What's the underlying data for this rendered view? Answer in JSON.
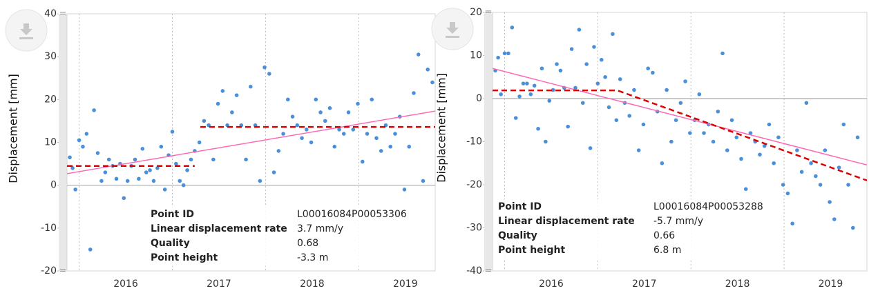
{
  "chart_data": [
    {
      "type": "scatter",
      "y_label": "Displacement [mm]",
      "color": "#4a90d9",
      "x": [
        2015.9,
        2015.93,
        2015.96,
        2016.0,
        2016.04,
        2016.08,
        2016.12,
        2016.16,
        2016.2,
        2016.24,
        2016.28,
        2016.32,
        2016.36,
        2016.4,
        2016.44,
        2016.48,
        2016.52,
        2016.56,
        2016.6,
        2016.64,
        2016.68,
        2016.72,
        2016.76,
        2016.8,
        2016.84,
        2016.88,
        2016.92,
        2016.96,
        2017.0,
        2017.04,
        2017.08,
        2017.12,
        2017.16,
        2017.2,
        2017.24,
        2017.29,
        2017.34,
        2017.39,
        2017.44,
        2017.49,
        2017.54,
        2017.59,
        2017.64,
        2017.69,
        2017.74,
        2017.79,
        2017.84,
        2017.89,
        2017.94,
        2017.99,
        2018.04,
        2018.09,
        2018.14,
        2018.19,
        2018.24,
        2018.29,
        2018.34,
        2018.39,
        2018.44,
        2018.49,
        2018.54,
        2018.59,
        2018.64,
        2018.69,
        2018.74,
        2018.79,
        2018.84,
        2018.89,
        2018.94,
        2018.99,
        2019.04,
        2019.09,
        2019.14,
        2019.19,
        2019.24,
        2019.29,
        2019.34,
        2019.39,
        2019.44,
        2019.49,
        2019.54,
        2019.59,
        2019.64,
        2019.69,
        2019.74,
        2019.79
      ],
      "values": [
        6.5,
        4,
        -1,
        10.5,
        9,
        12,
        -15,
        17.5,
        7.5,
        1,
        3,
        6,
        4.5,
        1.5,
        5,
        -3,
        1,
        4.5,
        6,
        1.5,
        8.5,
        3,
        3.5,
        1,
        4,
        9,
        -1,
        7,
        12.5,
        5,
        1,
        0,
        3.5,
        6,
        8,
        10,
        15,
        14,
        6,
        19,
        22,
        14,
        17,
        21,
        14,
        6,
        23,
        14,
        1,
        27.5,
        26,
        3,
        8,
        12,
        20,
        16,
        14,
        11,
        13,
        10,
        20,
        17,
        15,
        18,
        9,
        13,
        12,
        17,
        13,
        19,
        5.5,
        12,
        20,
        11,
        8,
        14,
        9,
        12,
        16,
        -1,
        9,
        21.5,
        30.5,
        1,
        27,
        24
      ],
      "trend": {
        "color": "#ff69b4",
        "x": [
          2015.87,
          2019.82
        ],
        "y": [
          2.7,
          17.3
        ]
      },
      "step": {
        "color": "#dd0000",
        "x": [
          2015.87,
          2017.24,
          2017.27,
          2017.3,
          2019.82
        ],
        "y": [
          4.5,
          4.5,
          null,
          13.6,
          13.6
        ]
      },
      "ylim": [
        -20,
        40
      ],
      "yticks": [
        -20,
        -10,
        0,
        10,
        20,
        30,
        40
      ],
      "xlim": [
        2015.87,
        2019.82
      ],
      "xticks": [
        {
          "value": 2016.5,
          "label": "2016"
        },
        {
          "value": 2017.5,
          "label": "2017"
        },
        {
          "value": 2018.5,
          "label": "2018"
        },
        {
          "value": 2019.5,
          "label": "2019"
        }
      ],
      "xgrid": [
        2016,
        2017,
        2018,
        2019
      ],
      "zero_line": true,
      "info": [
        {
          "label": "Point ID",
          "value": "L00016084P00053306"
        },
        {
          "label": "Linear displacement rate",
          "value": "3.7 mm/y"
        },
        {
          "label": "Quality",
          "value": "0.68"
        },
        {
          "label": "Point height",
          "value": "-3.3 m"
        }
      ]
    },
    {
      "type": "scatter",
      "y_label": "Displacement [mm]",
      "color": "#4a90d9",
      "x": [
        2015.9,
        2015.93,
        2015.96,
        2016.0,
        2016.04,
        2016.08,
        2016.12,
        2016.16,
        2016.2,
        2016.24,
        2016.28,
        2016.32,
        2016.36,
        2016.4,
        2016.44,
        2016.48,
        2016.52,
        2016.56,
        2016.6,
        2016.64,
        2016.68,
        2016.72,
        2016.76,
        2016.8,
        2016.84,
        2016.88,
        2016.92,
        2016.96,
        2017.0,
        2017.04,
        2017.08,
        2017.12,
        2017.16,
        2017.2,
        2017.24,
        2017.29,
        2017.34,
        2017.39,
        2017.44,
        2017.49,
        2017.54,
        2017.59,
        2017.64,
        2017.69,
        2017.74,
        2017.79,
        2017.84,
        2017.89,
        2017.94,
        2017.99,
        2018.04,
        2018.09,
        2018.14,
        2018.19,
        2018.24,
        2018.29,
        2018.34,
        2018.39,
        2018.44,
        2018.49,
        2018.54,
        2018.59,
        2018.64,
        2018.69,
        2018.74,
        2018.79,
        2018.84,
        2018.89,
        2018.94,
        2018.99,
        2019.04,
        2019.09,
        2019.14,
        2019.19,
        2019.24,
        2019.29,
        2019.34,
        2019.39,
        2019.44,
        2019.49,
        2019.54,
        2019.59,
        2019.64,
        2019.69,
        2019.74,
        2019.79
      ],
      "values": [
        6.5,
        9.5,
        1,
        10.5,
        10.5,
        16.5,
        -4.5,
        0.5,
        3.5,
        3.5,
        1,
        3,
        -7,
        7,
        -10,
        -0.5,
        2,
        8,
        6.5,
        2.5,
        -6.5,
        11.5,
        2.5,
        16,
        -1,
        8,
        -11.5,
        12,
        3.5,
        9,
        5,
        -2,
        15,
        -5,
        4.5,
        -1,
        -4,
        2,
        -12,
        -6,
        7,
        6,
        -3,
        -15,
        2,
        -10,
        -5,
        -1,
        4,
        -8,
        -5,
        1,
        -8,
        -6,
        -10,
        -3,
        10.5,
        -12,
        -5,
        -9,
        -14,
        -21,
        -8,
        -10,
        -13,
        -11,
        -6,
        -15,
        -9,
        -20,
        -22,
        -29,
        -12,
        -17,
        -1,
        -15,
        -18,
        -20,
        -12,
        -24,
        -28,
        -16,
        -6,
        -20,
        -30,
        -9
      ],
      "trend": {
        "color": "#ff69b4",
        "x": [
          2015.87,
          2019.89
        ],
        "y": [
          7.0,
          -15.4
        ]
      },
      "step": {
        "color": "#dd0000",
        "x": [
          2015.87,
          2017.21,
          2019.89
        ],
        "y": [
          1.9,
          1.9,
          -19
        ]
      },
      "ylim": [
        -40,
        20
      ],
      "yticks": [
        -40,
        -30,
        -20,
        -10,
        0,
        10,
        20
      ],
      "xlim": [
        2015.87,
        2019.89
      ],
      "xticks": [
        {
          "value": 2016.5,
          "label": "2016"
        },
        {
          "value": 2017.5,
          "label": "2017"
        },
        {
          "value": 2018.5,
          "label": "2018"
        },
        {
          "value": 2019.5,
          "label": "2019"
        }
      ],
      "xgrid": [
        2016,
        2017,
        2018,
        2019
      ],
      "zero_line": true,
      "info": [
        {
          "label": "Point ID",
          "value": "L00016084P00053288"
        },
        {
          "label": "Linear displacement rate",
          "value": "-5.7 mm/y"
        },
        {
          "label": "Quality",
          "value": "0.66"
        },
        {
          "label": "Point height",
          "value": "6.8 m"
        }
      ]
    }
  ]
}
